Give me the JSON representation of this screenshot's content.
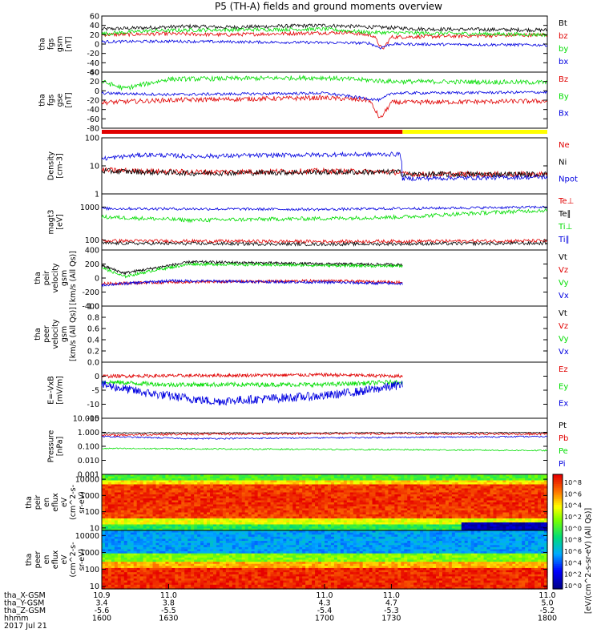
{
  "title": "P5 (TH-A) fields and ground moments overview",
  "colors": {
    "black": "#000000",
    "red": "#e00000",
    "green": "#00dd00",
    "blue": "#0000e0",
    "yellow": "#ffff00"
  },
  "chart_data": [
    {
      "type": "line",
      "panel": "fgs_gsm",
      "ylabel_lines": [
        "tha",
        "fgs",
        "gsm",
        "[nT]"
      ],
      "ylim": [
        -60,
        60
      ],
      "ticks": [
        "60",
        "40",
        "20",
        "0",
        "-20",
        "-40",
        "-60"
      ],
      "series": [
        {
          "name": "Bt",
          "color": "black",
          "keyframes": [
            [
              1600,
              32
            ],
            [
              1620,
              35
            ],
            [
              1640,
              38
            ],
            [
              1655,
              36
            ],
            [
              1700,
              40
            ],
            [
              1730,
              35
            ],
            [
              1745,
              32
            ],
            [
              1800,
              30
            ]
          ],
          "noise": 4
        },
        {
          "name": "bz",
          "color": "red",
          "keyframes": [
            [
              1600,
              20
            ],
            [
              1630,
              22
            ],
            [
              1655,
              20
            ],
            [
              1710,
              25
            ],
            [
              1722,
              18
            ],
            [
              1726,
              -12
            ],
            [
              1730,
              15
            ],
            [
              1800,
              20
            ]
          ],
          "noise": 4
        },
        {
          "name": "by",
          "color": "green",
          "keyframes": [
            [
              1600,
              22
            ],
            [
              1620,
              28
            ],
            [
              1640,
              30
            ],
            [
              1700,
              32
            ],
            [
              1720,
              25
            ],
            [
              1800,
              20
            ]
          ],
          "noise": 4
        },
        {
          "name": "bx",
          "color": "blue",
          "keyframes": [
            [
              1600,
              5
            ],
            [
              1630,
              6
            ],
            [
              1700,
              3
            ],
            [
              1720,
              2
            ],
            [
              1725,
              -8
            ],
            [
              1730,
              0
            ],
            [
              1800,
              -2
            ]
          ],
          "noise": 3
        }
      ]
    },
    {
      "type": "line",
      "panel": "fgs_gse",
      "ylabel_lines": [
        "tha",
        "fgs",
        "gse",
        "[nT]"
      ],
      "ylim": [
        -80,
        40
      ],
      "ticks": [
        "40",
        "20",
        "0",
        "-20",
        "-40",
        "-60",
        "-80"
      ],
      "series": [
        {
          "name": "Bz",
          "color": "red",
          "keyframes": [
            [
              1600,
              -25
            ],
            [
              1630,
              -20
            ],
            [
              1700,
              -15
            ],
            [
              1720,
              -20
            ],
            [
              1725,
              -60
            ],
            [
              1730,
              -25
            ],
            [
              1800,
              -22
            ]
          ],
          "noise": 5
        },
        {
          "name": "By",
          "color": "green",
          "keyframes": [
            [
              1600,
              20
            ],
            [
              1610,
              5
            ],
            [
              1630,
              25
            ],
            [
              1700,
              28
            ],
            [
              1730,
              20
            ],
            [
              1800,
              18
            ]
          ],
          "noise": 5
        },
        {
          "name": "Bx",
          "color": "blue",
          "keyframes": [
            [
              1600,
              -5
            ],
            [
              1630,
              -8
            ],
            [
              1700,
              -5
            ],
            [
              1725,
              -20
            ],
            [
              1730,
              -5
            ],
            [
              1800,
              -3
            ]
          ],
          "noise": 3
        }
      ]
    },
    {
      "type": "bar",
      "panel": "region_bar",
      "segments": [
        {
          "from": 1600,
          "to": 1735,
          "color": "red"
        },
        {
          "from": 1735,
          "to": 1800,
          "color": "yellow"
        }
      ]
    },
    {
      "type": "line",
      "panel": "density",
      "ylabel_lines": [
        "Density",
        "[cm-3]"
      ],
      "log": true,
      "ylim": [
        1,
        100
      ],
      "ticks": [
        "100",
        "10",
        "1"
      ],
      "series": [
        {
          "name": "Ne",
          "color": "red",
          "keyframes": [
            [
              1600,
              7
            ],
            [
              1640,
              6
            ],
            [
              1700,
              6.5
            ],
            [
              1734,
              6
            ],
            [
              1735,
              5
            ],
            [
              1800,
              5
            ]
          ],
          "noise": 0.1
        },
        {
          "name": "Ni",
          "color": "black",
          "keyframes": [
            [
              1600,
              6.5
            ],
            [
              1640,
              5.5
            ],
            [
              1700,
              6
            ],
            [
              1734,
              6
            ],
            [
              1735,
              5
            ],
            [
              1800,
              5
            ]
          ],
          "noise": 0.1
        },
        {
          "name": "Npot",
          "color": "blue",
          "keyframes": [
            [
              1600,
              18
            ],
            [
              1620,
              25
            ],
            [
              1640,
              22
            ],
            [
              1700,
              25
            ],
            [
              1734,
              26
            ],
            [
              1735,
              3.5
            ],
            [
              1800,
              4
            ]
          ],
          "noise": 0.08
        }
      ],
      "legend": [
        "Ne",
        "Ni",
        "Npot"
      ]
    },
    {
      "type": "line",
      "panel": "temperature",
      "ylabel_lines": [
        "magt3",
        "[eV]"
      ],
      "log": true,
      "ylim": [
        50,
        2500
      ],
      "ticks": [
        "1000",
        "100"
      ],
      "series": [
        {
          "name": "Te⊥",
          "color": "red",
          "keyframes": [
            [
              1600,
              95
            ],
            [
              1700,
              90
            ],
            [
              1800,
              95
            ]
          ],
          "noise": 0.05
        },
        {
          "name": "Te∥",
          "color": "black",
          "keyframes": [
            [
              1600,
              80
            ],
            [
              1700,
              75
            ],
            [
              1800,
              80
            ]
          ],
          "noise": 0.05
        },
        {
          "name": "Ti⊥",
          "color": "green",
          "keyframes": [
            [
              1600,
              500
            ],
            [
              1640,
              400
            ],
            [
              1700,
              450
            ],
            [
              1735,
              500
            ],
            [
              1800,
              800
            ]
          ],
          "noise": 0.06
        },
        {
          "name": "Ti∥",
          "color": "blue",
          "keyframes": [
            [
              1600,
              900
            ],
            [
              1700,
              850
            ],
            [
              1800,
              1000
            ]
          ],
          "noise": 0.04
        }
      ]
    },
    {
      "type": "line",
      "panel": "peir_velocity",
      "ylabel_lines": [
        "tha",
        "peir",
        "velocity",
        "gsm",
        "[km/s (All Qs)]"
      ],
      "ylim": [
        -400,
        400
      ],
      "ticks": [
        "400",
        "200",
        "0",
        "-200",
        "-400"
      ],
      "xmax": 1735,
      "series": [
        {
          "name": "Vt",
          "color": "black",
          "keyframes": [
            [
              1600,
              180
            ],
            [
              1610,
              70
            ],
            [
              1625,
              150
            ],
            [
              1640,
              230
            ],
            [
              1700,
              200
            ],
            [
              1735,
              190
            ]
          ],
          "noise": 20
        },
        {
          "name": "Vz",
          "color": "red",
          "keyframes": [
            [
              1600,
              -80
            ],
            [
              1630,
              -60
            ],
            [
              1700,
              -40
            ],
            [
              1735,
              -60
            ]
          ],
          "noise": 20
        },
        {
          "name": "Vy",
          "color": "green",
          "keyframes": [
            [
              1600,
              150
            ],
            [
              1610,
              20
            ],
            [
              1625,
              120
            ],
            [
              1640,
              200
            ],
            [
              1700,
              180
            ],
            [
              1735,
              170
            ]
          ],
          "noise": 20
        },
        {
          "name": "Vx",
          "color": "blue",
          "keyframes": [
            [
              1600,
              -100
            ],
            [
              1630,
              -40
            ],
            [
              1700,
              -60
            ],
            [
              1735,
              -80
            ]
          ],
          "noise": 20
        }
      ]
    },
    {
      "type": "line",
      "panel": "peer_velocity",
      "ylabel_lines": [
        "tha",
        "peer",
        "velocity",
        "gsm",
        "[km/s (All Qs)]"
      ],
      "ylim": [
        0,
        1
      ],
      "ticks": [
        "1.0",
        "0.8",
        "0.6",
        "0.4",
        "0.2",
        "0.0"
      ],
      "series": [
        {
          "name": "Vt",
          "color": "black",
          "keyframes": []
        },
        {
          "name": "Vz",
          "color": "red",
          "keyframes": []
        },
        {
          "name": "Vy",
          "color": "green",
          "keyframes": []
        },
        {
          "name": "Vx",
          "color": "blue",
          "keyframes": []
        }
      ]
    },
    {
      "type": "line",
      "panel": "e_field",
      "ylabel_lines": [
        "E=-VxB",
        "[mV/m]"
      ],
      "ylim": [
        -15,
        5
      ],
      "ticks": [
        "0",
        "-5",
        "-10",
        "-15"
      ],
      "xmax": 1735,
      "series": [
        {
          "name": "Ez",
          "color": "red",
          "keyframes": [
            [
              1600,
              0
            ],
            [
              1700,
              0.5
            ],
            [
              1735,
              0
            ]
          ],
          "noise": 0.6
        },
        {
          "name": "Ey",
          "color": "green",
          "keyframes": [
            [
              1600,
              -2
            ],
            [
              1630,
              -3
            ],
            [
              1700,
              -3
            ],
            [
              1735,
              -2
            ]
          ],
          "noise": 0.8
        },
        {
          "name": "Ex",
          "color": "blue",
          "keyframes": [
            [
              1600,
              -3
            ],
            [
              1620,
              -6
            ],
            [
              1650,
              -9
            ],
            [
              1700,
              -7
            ],
            [
              1720,
              -5
            ],
            [
              1735,
              -3
            ]
          ],
          "noise": 1.6
        }
      ]
    },
    {
      "type": "line",
      "panel": "pressure",
      "ylabel_lines": [
        "Pressure",
        "[nPa]"
      ],
      "log": true,
      "ylim": [
        0.001,
        10
      ],
      "ticks": [
        "10.000",
        "1.000",
        "0.100",
        "0.010",
        "0.001"
      ],
      "series": [
        {
          "name": "Pt",
          "color": "black",
          "keyframes": [
            [
              1600,
              0.9
            ],
            [
              1700,
              0.9
            ],
            [
              1800,
              0.95
            ]
          ],
          "noise": 0.04
        },
        {
          "name": "Pb",
          "color": "red",
          "keyframes": [
            [
              1600,
              0.6
            ],
            [
              1620,
              0.7
            ],
            [
              1700,
              0.8
            ],
            [
              1800,
              0.75
            ]
          ],
          "noise": 0.08
        },
        {
          "name": "Pe",
          "color": "green",
          "keyframes": [
            [
              1600,
              0.07
            ],
            [
              1700,
              0.06
            ],
            [
              1800,
              0.05
            ]
          ],
          "noise": 0.05
        },
        {
          "name": "Pi",
          "color": "blue",
          "keyframes": [
            [
              1600,
              0.5
            ],
            [
              1640,
              0.35
            ],
            [
              1700,
              0.4
            ],
            [
              1800,
              0.5
            ]
          ],
          "noise": 0.05
        }
      ]
    },
    {
      "type": "heatmap",
      "panel": "peir_en_eflux",
      "ylabel_lines": [
        "tha",
        "peir",
        "en",
        "eflux",
        "eV",
        "(cm^2-s-",
        "sr-eV)"
      ],
      "log": true,
      "ylim": [
        7,
        20000
      ],
      "ticks": [
        "10000",
        "1000",
        "100",
        "10"
      ]
    },
    {
      "type": "heatmap",
      "panel": "peer_en_eflux",
      "ylabel_lines": [
        "tha",
        "peer",
        "en",
        "eflux",
        "eV",
        "(cm^2-s-",
        "sr-eV)"
      ],
      "log": true,
      "ylim": [
        7,
        20000
      ],
      "ticks": [
        "10000",
        "1000",
        "100",
        "10"
      ]
    }
  ],
  "colorbar": {
    "ticks": [
      "10^8",
      "10^6",
      "10^4",
      "10^2",
      "10^0",
      "10^8",
      "10^6",
      "10^4",
      "10^2",
      "10^0"
    ],
    "label": "[eV/(cm^2-s-sr-eV) (All Qs)]"
  },
  "x_axis": {
    "rows": [
      {
        "label": "tha_X-GSM",
        "values": [
          "10.9",
          "11.0",
          "11.0",
          "11.0",
          "11.0"
        ]
      },
      {
        "label": "tha_Y-GSM",
        "values": [
          "3.4",
          "3.8",
          "4.3",
          "4.7",
          "5.0"
        ]
      },
      {
        "label": "tha_Z-GSM",
        "values": [
          "-5.6",
          "-5.5",
          "-5.4",
          "-5.3",
          "-5.2"
        ]
      },
      {
        "label": "hhmm",
        "values": [
          "1600",
          "1630",
          "1700",
          "1730",
          "1800"
        ]
      }
    ],
    "date": "2017 Jul 21"
  }
}
